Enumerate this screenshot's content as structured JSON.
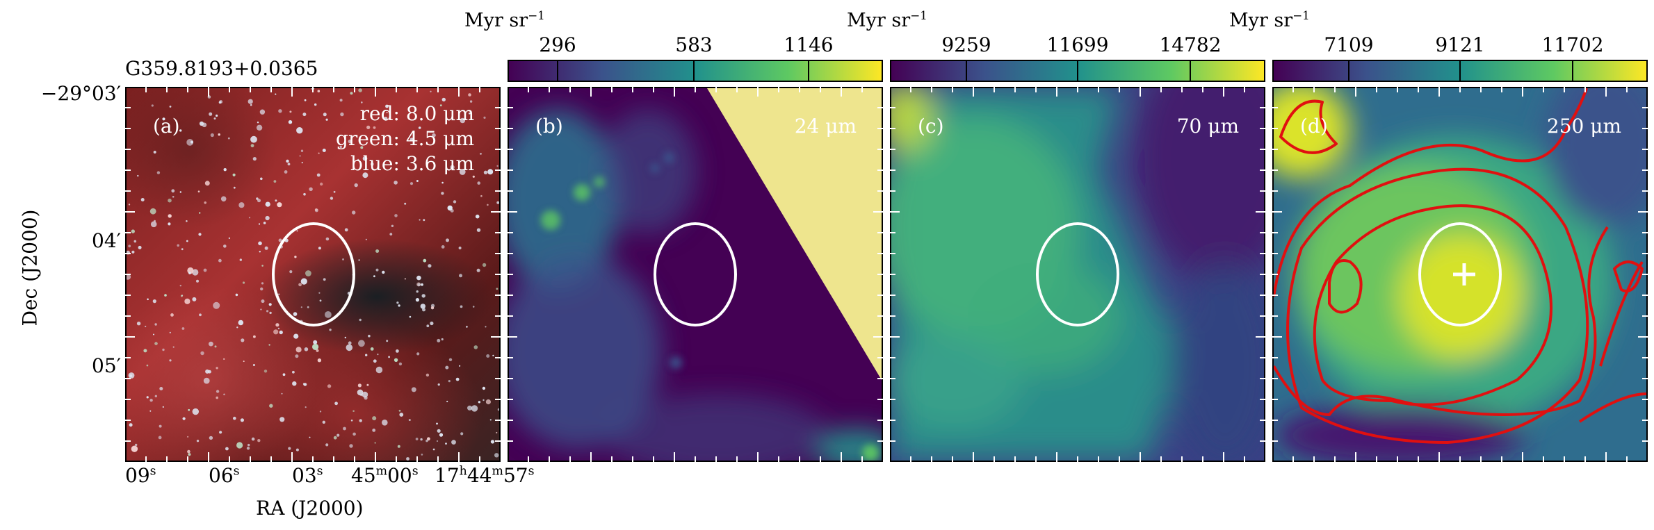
{
  "figure": {
    "source_label": "G359.8193+0.0365",
    "ylabel": "Dec (J2000)",
    "xlabel": "RA (J2000)",
    "dec_ticks": [
      "−29°03′",
      "04′",
      "05′"
    ],
    "ra_ticks": [
      {
        "v": "09",
        "u": "s"
      },
      {
        "v": "06",
        "u": "s"
      },
      {
        "v": "03",
        "u": "s"
      },
      {
        "v": "45",
        "u": "m",
        "v2": "00",
        "u2": "s"
      },
      {
        "v": "17",
        "u": "h",
        "v2": "44",
        "u2": "m",
        "v3": "57",
        "u3": "s"
      }
    ]
  },
  "panels": [
    {
      "letter": "(a)",
      "legend": [
        "red: 8.0 μm",
        "green: 4.5 μm",
        "blue: 3.6 μm"
      ]
    },
    {
      "letter": "(b)",
      "band": "24 μm",
      "cbar_unit": "Myr sr",
      "cbar_exp": "−1",
      "cbar_ticks": [
        "296",
        "583",
        "1146"
      ]
    },
    {
      "letter": "(c)",
      "band": "70 μm",
      "cbar_unit": "Myr sr",
      "cbar_exp": "−1",
      "cbar_ticks": [
        "9259",
        "11699",
        "14782"
      ]
    },
    {
      "letter": "(d)",
      "band": "250 μm",
      "cbar_unit": "Myr sr",
      "cbar_exp": "−1",
      "cbar_ticks": [
        "7109",
        "9121",
        "11702"
      ]
    }
  ],
  "colors": {
    "viridis": [
      "#440154",
      "#3b528b",
      "#21918c",
      "#5ec962",
      "#fde725"
    ],
    "contour": "#e01010",
    "marker": "#ffffff"
  }
}
